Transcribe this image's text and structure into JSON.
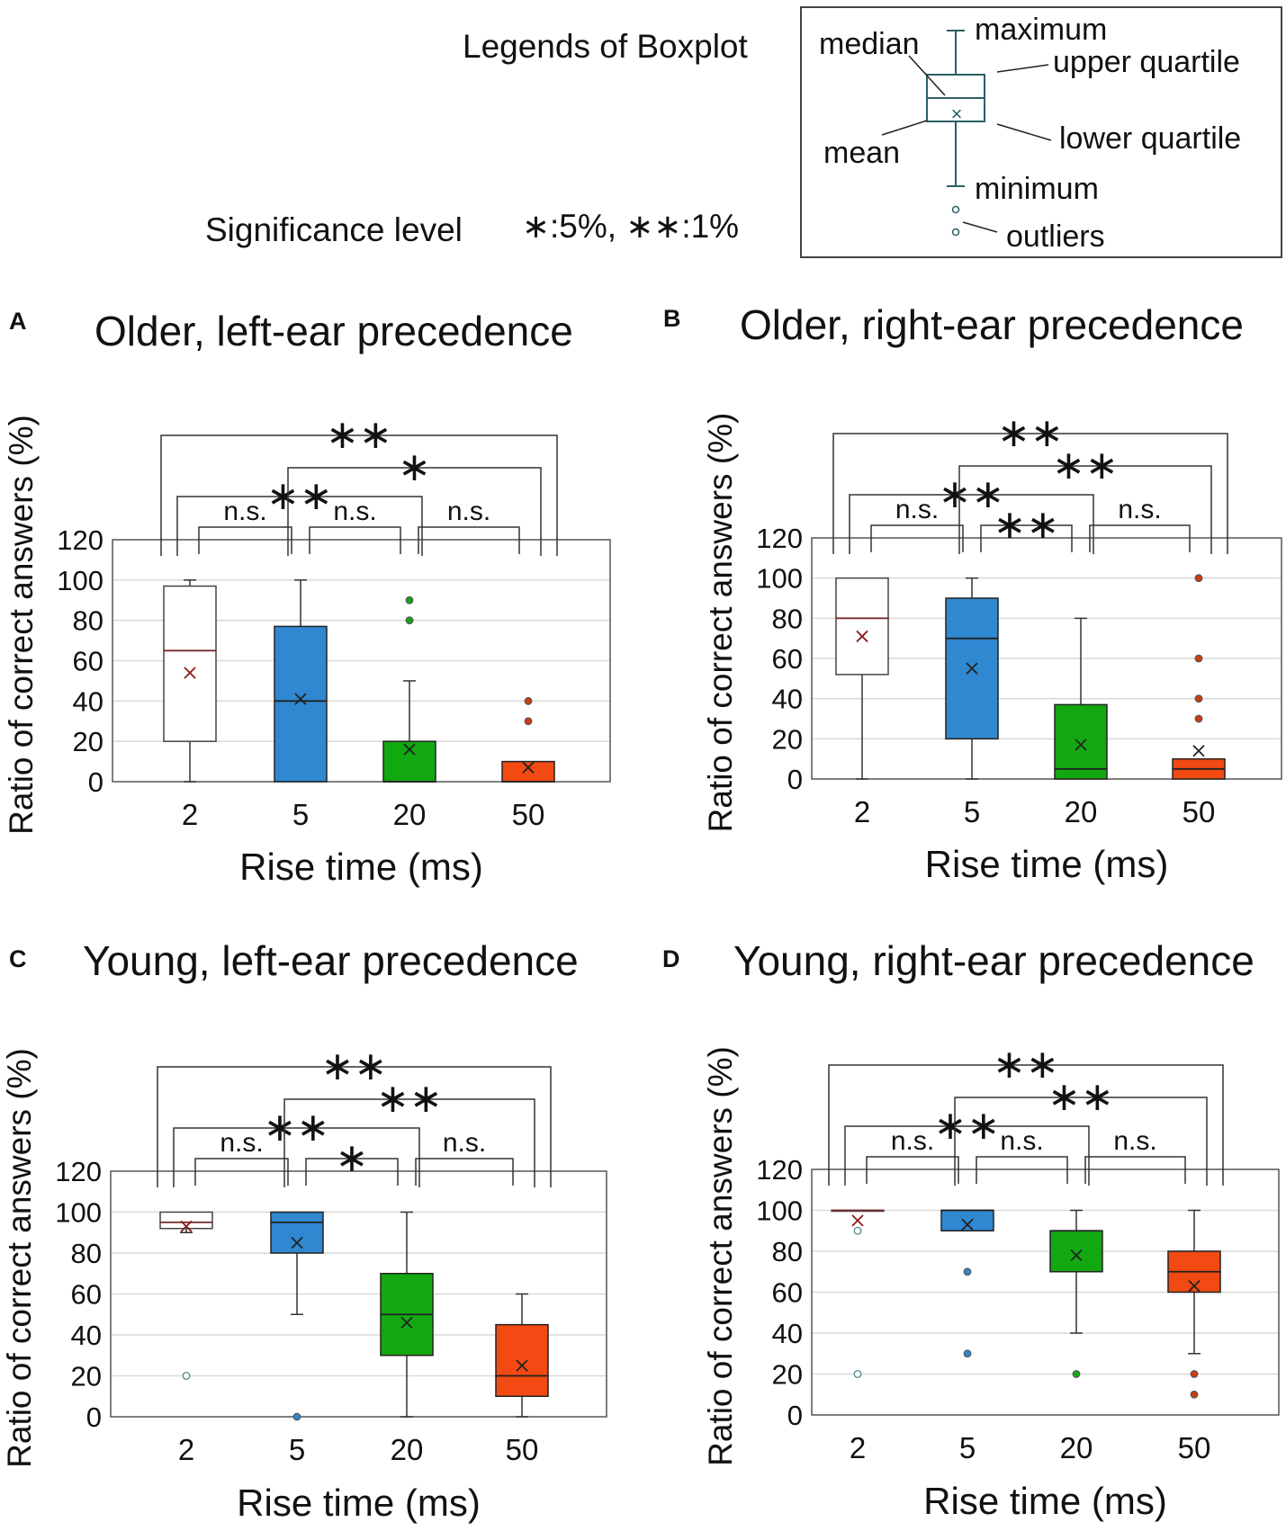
{
  "legend": {
    "title": "Legends of Boxplot",
    "labels": {
      "maximum": "maximum",
      "median": "median",
      "upper_quartile": "upper quartile",
      "mean": "mean",
      "lower_quartile": "lower quartile",
      "minimum": "minimum",
      "outliers": "outliers"
    },
    "significance_note": "Significance level",
    "significance_levels": "∗:5%, ∗∗:1%"
  },
  "colors": {
    "2": "#ffffff",
    "5": "#2f88d0",
    "20": "#12a812",
    "50": "#f24a12",
    "mean_marker": "#8b1a1a",
    "legend_box": "#2b5f66"
  },
  "chart_data": [
    {
      "letter": "A",
      "title": "Older, left-ear precedence",
      "type": "boxplot",
      "categories": [
        "2",
        "5",
        "20",
        "50"
      ],
      "xlabel": "Rise time (ms)",
      "ylabel": "Ratio of correct answers (%)",
      "ylim": [
        0,
        120
      ],
      "yticks": [
        0,
        20,
        40,
        60,
        80,
        100,
        120
      ],
      "grid": true,
      "boxes": [
        {
          "cat": "2",
          "min": 0,
          "q1": 20,
          "median": 65,
          "q3": 97,
          "max": 100,
          "mean": 54,
          "outliers": []
        },
        {
          "cat": "5",
          "min": 0,
          "q1": 0,
          "median": 40,
          "q3": 77,
          "max": 100,
          "mean": 41,
          "outliers": []
        },
        {
          "cat": "20",
          "min": 0,
          "q1": 0,
          "median": 0,
          "q3": 20,
          "max": 50,
          "mean": 16,
          "outliers": [
            80,
            90
          ]
        },
        {
          "cat": "50",
          "min": 0,
          "q1": 0,
          "median": 0,
          "q3": 10,
          "max": 10,
          "mean": 7,
          "outliers": [
            30,
            40
          ]
        }
      ],
      "comparisons": [
        {
          "from": "2",
          "to": "5",
          "label": "n.s."
        },
        {
          "from": "5",
          "to": "20",
          "label": "n.s."
        },
        {
          "from": "20",
          "to": "50",
          "label": "n.s."
        },
        {
          "from": "2",
          "to": "20",
          "label": "∗∗"
        },
        {
          "from": "5",
          "to": "50",
          "label": "∗"
        },
        {
          "from": "2",
          "to": "50",
          "label": "∗∗"
        }
      ]
    },
    {
      "letter": "B",
      "title": "Older, right-ear precedence",
      "type": "boxplot",
      "categories": [
        "2",
        "5",
        "20",
        "50"
      ],
      "xlabel": "Rise time (ms)",
      "ylabel": "Ratio of correct answers (%)",
      "ylim": [
        0,
        120
      ],
      "yticks": [
        0,
        20,
        40,
        60,
        80,
        100,
        120
      ],
      "grid": true,
      "boxes": [
        {
          "cat": "2",
          "min": 0,
          "q1": 52,
          "median": 80,
          "q3": 100,
          "max": 100,
          "mean": 71,
          "outliers": []
        },
        {
          "cat": "5",
          "min": 0,
          "q1": 20,
          "median": 70,
          "q3": 90,
          "max": 100,
          "mean": 55,
          "outliers": []
        },
        {
          "cat": "20",
          "min": 0,
          "q1": 0,
          "median": 5,
          "q3": 37,
          "max": 80,
          "mean": 17,
          "outliers": []
        },
        {
          "cat": "50",
          "min": 0,
          "q1": 0,
          "median": 5,
          "q3": 10,
          "max": 10,
          "mean": 14,
          "outliers": [
            30,
            40,
            60,
            100
          ]
        }
      ],
      "comparisons": [
        {
          "from": "2",
          "to": "5",
          "label": "n.s."
        },
        {
          "from": "5",
          "to": "20",
          "label": "∗∗"
        },
        {
          "from": "20",
          "to": "50",
          "label": "n.s."
        },
        {
          "from": "2",
          "to": "20",
          "label": "∗∗"
        },
        {
          "from": "5",
          "to": "50",
          "label": "∗∗"
        },
        {
          "from": "2",
          "to": "50",
          "label": "∗∗"
        }
      ]
    },
    {
      "letter": "C",
      "title": "Young, left-ear precedence",
      "type": "boxplot",
      "categories": [
        "2",
        "5",
        "20",
        "50"
      ],
      "xlabel": "Rise time (ms)",
      "ylabel": "Ratio of correct answers (%)",
      "ylim": [
        0,
        120
      ],
      "yticks": [
        0,
        20,
        40,
        60,
        80,
        100,
        120
      ],
      "grid": true,
      "boxes": [
        {
          "cat": "2",
          "min": 90,
          "q1": 92,
          "median": 95,
          "q3": 100,
          "max": 100,
          "mean": 93,
          "outliers": [
            20
          ]
        },
        {
          "cat": "5",
          "min": 50,
          "q1": 80,
          "median": 95,
          "q3": 100,
          "max": 100,
          "mean": 85,
          "outliers": [
            0
          ]
        },
        {
          "cat": "20",
          "min": 0,
          "q1": 30,
          "median": 50,
          "q3": 70,
          "max": 100,
          "mean": 46,
          "outliers": []
        },
        {
          "cat": "50",
          "min": 0,
          "q1": 10,
          "median": 20,
          "q3": 45,
          "max": 60,
          "mean": 25,
          "outliers": []
        }
      ],
      "comparisons": [
        {
          "from": "2",
          "to": "5",
          "label": "n.s."
        },
        {
          "from": "5",
          "to": "20",
          "label": "∗"
        },
        {
          "from": "20",
          "to": "50",
          "label": "n.s."
        },
        {
          "from": "2",
          "to": "20",
          "label": "∗∗"
        },
        {
          "from": "5",
          "to": "50",
          "label": "∗∗"
        },
        {
          "from": "2",
          "to": "50",
          "label": "∗∗"
        }
      ]
    },
    {
      "letter": "D",
      "title": "Young, right-ear precedence",
      "type": "boxplot",
      "categories": [
        "2",
        "5",
        "20",
        "50"
      ],
      "xlabel": "Rise time (ms)",
      "ylabel": "Ratio of correct answers (%)",
      "ylim": [
        0,
        120
      ],
      "yticks": [
        0,
        20,
        40,
        60,
        80,
        100,
        120
      ],
      "grid": true,
      "boxes": [
        {
          "cat": "2",
          "min": 100,
          "q1": 100,
          "median": 100,
          "q3": 100,
          "max": 100,
          "mean": 95,
          "outliers": [
            20,
            90
          ]
        },
        {
          "cat": "5",
          "min": 90,
          "q1": 90,
          "median": 100,
          "q3": 100,
          "max": 100,
          "mean": 93,
          "outliers": [
            30,
            70
          ]
        },
        {
          "cat": "20",
          "min": 40,
          "q1": 70,
          "median": 90,
          "q3": 90,
          "max": 100,
          "mean": 78,
          "outliers": [
            20
          ]
        },
        {
          "cat": "50",
          "min": 30,
          "q1": 60,
          "median": 70,
          "q3": 80,
          "max": 100,
          "mean": 63,
          "outliers": [
            10,
            20
          ]
        }
      ],
      "comparisons": [
        {
          "from": "2",
          "to": "5",
          "label": "n.s."
        },
        {
          "from": "5",
          "to": "20",
          "label": "n.s."
        },
        {
          "from": "20",
          "to": "50",
          "label": "n.s."
        },
        {
          "from": "2",
          "to": "20",
          "label": "∗∗"
        },
        {
          "from": "5",
          "to": "50",
          "label": "∗∗"
        },
        {
          "from": "2",
          "to": "50",
          "label": "∗∗"
        }
      ]
    }
  ]
}
